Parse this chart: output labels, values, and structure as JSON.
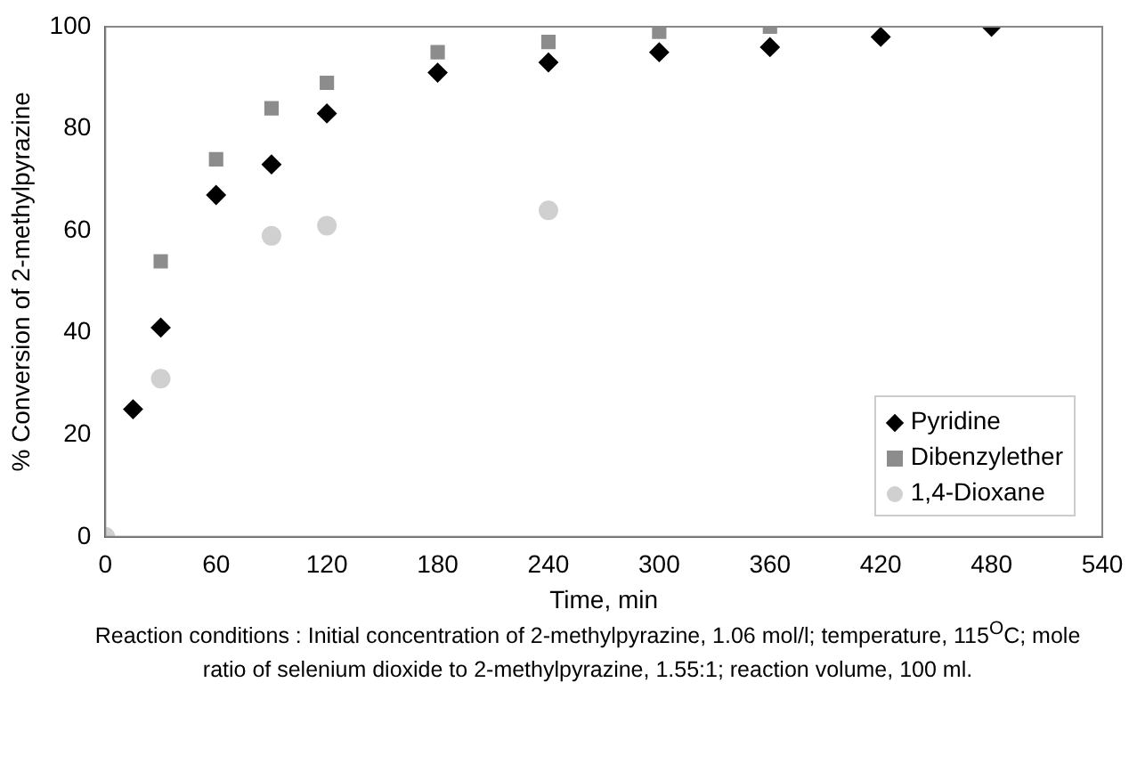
{
  "chart_data": {
    "type": "scatter",
    "xlabel": "Time, min",
    "ylabel": "% Conversion of 2-methylpyrazine",
    "xlim": [
      0,
      540
    ],
    "xticks": [
      0,
      60,
      120,
      180,
      240,
      300,
      360,
      420,
      480,
      540
    ],
    "ylim": [
      0,
      100
    ],
    "yticks": [
      0,
      20,
      40,
      60,
      80,
      100
    ],
    "grid": false,
    "legend": "bottom right",
    "series": [
      {
        "name": "Pyridine",
        "color": "#000000",
        "marker": "diamond",
        "x": [
          15,
          30,
          60,
          90,
          120,
          180,
          240,
          300,
          360,
          420,
          480
        ],
        "values": [
          25,
          41,
          67,
          73,
          83,
          91,
          93,
          95,
          96,
          98,
          100
        ]
      },
      {
        "name": "Dibenzylether",
        "color": "#8c8c8c",
        "marker": "square",
        "x": [
          30,
          60,
          90,
          120,
          180,
          240,
          300,
          360
        ],
        "values": [
          54,
          74,
          84,
          89,
          95,
          97,
          99,
          100
        ]
      },
      {
        "name": "1,4-Dioxane",
        "color": "#d0d0d0",
        "marker": "circle",
        "x": [
          0,
          30,
          90,
          120,
          240
        ],
        "values": [
          0,
          31,
          59,
          61,
          64
        ]
      }
    ],
    "annotations": [
      "Reaction conditions : Initial concentration of 2-methylpyrazine, 1.06 mol/l; temperature, 115$^{O}$C; mole ratio of selenium dioxide to 2-methylpyrazine, 1.55:1; reaction volume, 100 ml."
    ]
  }
}
